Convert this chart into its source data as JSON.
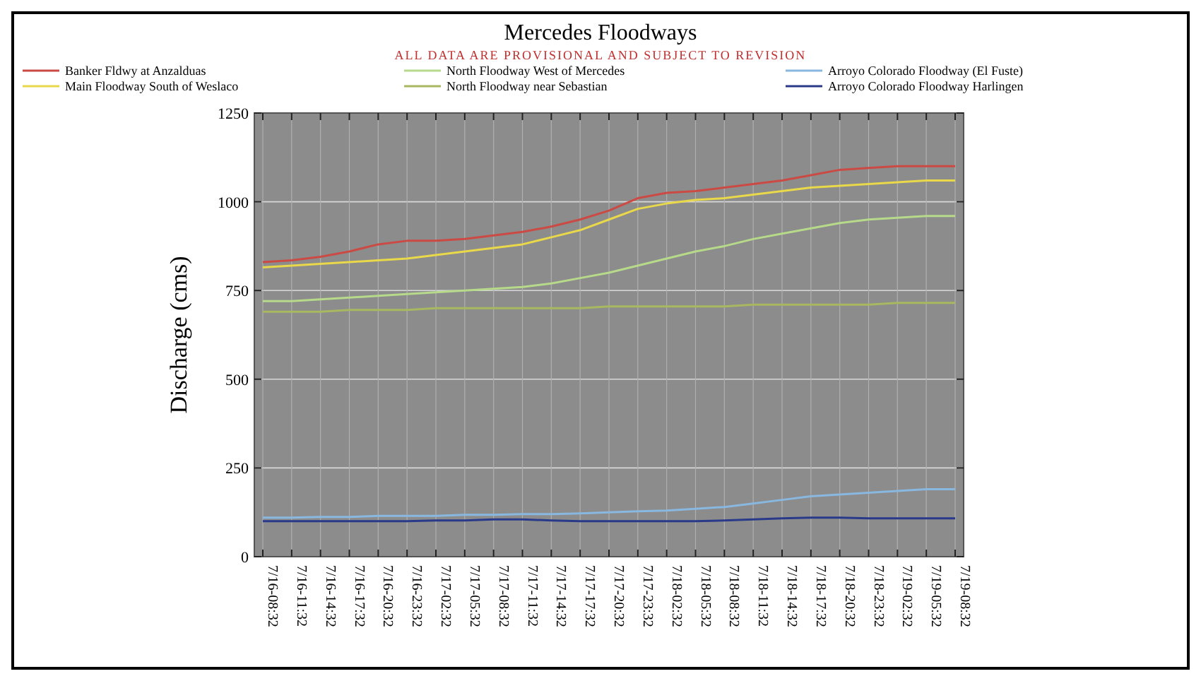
{
  "chart_data": {
    "type": "line",
    "title": "Mercedes Floodways",
    "subtitle": "ALL DATA ARE PROVISIONAL AND SUBJECT TO REVISION",
    "ylabel": "Discharge (cms)",
    "categories": [
      "7/16-08:32",
      "7/16-11:32",
      "7/16-14:32",
      "7/16-17:32",
      "7/16-20:32",
      "7/16-23:32",
      "7/17-02:32",
      "7/17-05:32",
      "7/17-08:32",
      "7/17-11:32",
      "7/17-14:32",
      "7/17-17:32",
      "7/17-20:32",
      "7/17-23:32",
      "7/18-02:32",
      "7/18-05:32",
      "7/18-08:32",
      "7/18-11:32",
      "7/18-14:32",
      "7/18-17:32",
      "7/18-20:32",
      "7/18-23:32",
      "7/19-02:32",
      "7/19-05:32",
      "7/19-08:32"
    ],
    "series": [
      {
        "name": "Banker Fldwy at Anzalduas",
        "color": "#cc4a44",
        "values": [
          830,
          835,
          845,
          860,
          880,
          890,
          890,
          895,
          905,
          915,
          930,
          950,
          975,
          1010,
          1025,
          1030,
          1040,
          1050,
          1060,
          1075,
          1090,
          1095,
          1100,
          1100,
          1100
        ]
      },
      {
        "name": "North Floodway West of Mercedes",
        "color": "#b6d98a",
        "values": [
          720,
          720,
          725,
          730,
          735,
          740,
          745,
          750,
          755,
          760,
          770,
          785,
          800,
          820,
          840,
          860,
          875,
          895,
          910,
          925,
          940,
          950,
          955,
          960,
          960
        ]
      },
      {
        "name": "Arroyo Colorado Floodway (El Fuste)",
        "color": "#88b8e0",
        "values": [
          110,
          110,
          112,
          112,
          115,
          115,
          115,
          118,
          118,
          120,
          120,
          122,
          125,
          128,
          130,
          135,
          140,
          150,
          160,
          170,
          175,
          180,
          185,
          190,
          190
        ]
      },
      {
        "name": "Main Floodway South of Weslaco",
        "color": "#e8d84a",
        "values": [
          815,
          820,
          825,
          830,
          835,
          840,
          850,
          860,
          870,
          880,
          900,
          920,
          950,
          980,
          995,
          1005,
          1010,
          1020,
          1030,
          1040,
          1045,
          1050,
          1055,
          1060,
          1060
        ]
      },
      {
        "name": "North Floodway near Sebastian",
        "color": "#a8b860",
        "values": [
          690,
          690,
          690,
          695,
          695,
          695,
          700,
          700,
          700,
          700,
          700,
          700,
          705,
          705,
          705,
          705,
          705,
          710,
          710,
          710,
          710,
          710,
          715,
          715,
          715
        ]
      },
      {
        "name": "Arroyo Colorado Floodway Harlingen",
        "color": "#2a3a8a",
        "values": [
          100,
          100,
          100,
          100,
          100,
          100,
          102,
          102,
          105,
          105,
          102,
          100,
          100,
          100,
          100,
          100,
          102,
          105,
          108,
          110,
          110,
          108,
          108,
          108,
          108
        ]
      }
    ],
    "ylim": [
      0,
      1250
    ],
    "yticks": [
      0,
      250,
      500,
      750,
      1000,
      1250
    ],
    "grid": true,
    "legend": "top",
    "line_style": "solid",
    "marker": "none"
  }
}
